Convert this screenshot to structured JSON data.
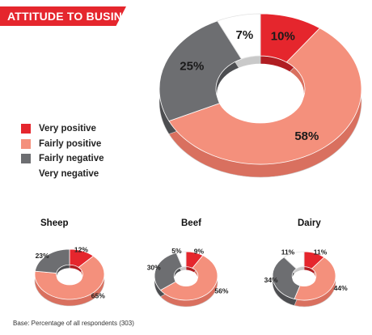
{
  "title": "ATTITUDE TO BUSINESS",
  "footnote": "Base: Percentage of all respondents (303)",
  "legend": [
    {
      "label": "Very positive",
      "color": "#e5262d"
    },
    {
      "label": "Fairly positive",
      "color": "#f4907c"
    },
    {
      "label": "Fairly negative",
      "color": "#6d6e71"
    },
    {
      "label": "Very negative",
      "color": "#ffffff"
    }
  ],
  "chart_data": [
    {
      "type": "pie",
      "title": "",
      "categories": [
        "Very positive",
        "Fairly positive",
        "Fairly negative",
        "Very negative"
      ],
      "values": [
        10,
        58,
        25,
        7
      ],
      "labels": [
        "10%",
        "58%",
        "25%",
        "7%"
      ]
    },
    {
      "type": "pie",
      "title": "Sheep",
      "categories": [
        "Very positive",
        "Fairly positive",
        "Fairly negative",
        "Very negative"
      ],
      "values": [
        12,
        65,
        23,
        0
      ],
      "labels": [
        "12%",
        "65%",
        "23%",
        ""
      ]
    },
    {
      "type": "pie",
      "title": "Beef",
      "categories": [
        "Very positive",
        "Fairly positive",
        "Fairly negative",
        "Very negative"
      ],
      "values": [
        9,
        56,
        30,
        5
      ],
      "labels": [
        "9%",
        "56%",
        "30%",
        "5%"
      ]
    },
    {
      "type": "pie",
      "title": "Dairy",
      "categories": [
        "Very positive",
        "Fairly positive",
        "Fairly negative",
        "Very negative"
      ],
      "values": [
        11,
        44,
        34,
        11
      ],
      "labels": [
        "11%",
        "44%",
        "34%",
        "11%"
      ]
    }
  ]
}
